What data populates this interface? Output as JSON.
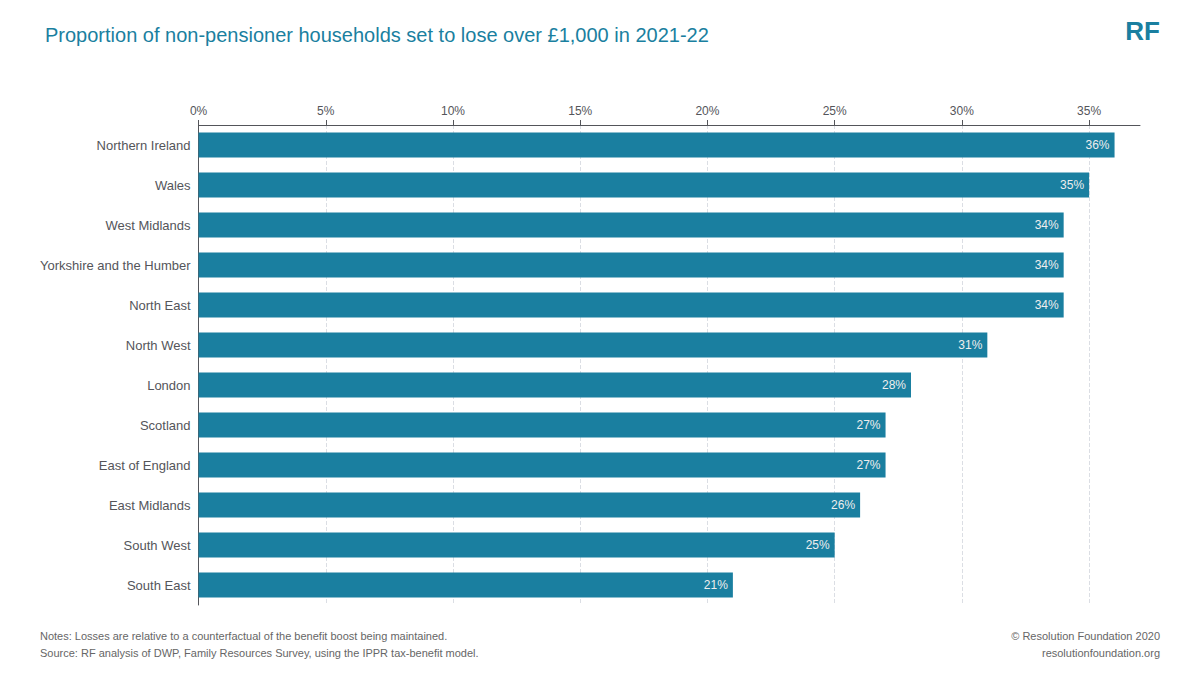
{
  "chart_data": {
    "type": "bar",
    "orientation": "horizontal",
    "title": "Proportion of non-pensioner households set to lose over £1,000 in 2021-22",
    "categories": [
      "Northern Ireland",
      "Wales",
      "West Midlands",
      "Yorkshire and the Humber",
      "North East",
      "North West",
      "London",
      "Scotland",
      "East of England",
      "East Midlands",
      "South West",
      "South East"
    ],
    "values": [
      36,
      35,
      34,
      34,
      34,
      31,
      28,
      27,
      27,
      26,
      25,
      21
    ],
    "value_labels": [
      "36%",
      "35%",
      "34%",
      "34%",
      "34%",
      "31%",
      "28%",
      "27%",
      "27%",
      "26%",
      "25%",
      "21%"
    ],
    "data_labels": true,
    "color": "#1a7fa0",
    "xlim": [
      0,
      37
    ],
    "xticks": [
      {
        "value": 0,
        "label": "0%"
      },
      {
        "value": 5,
        "label": "5%"
      },
      {
        "value": 10,
        "label": "10%"
      },
      {
        "value": 15,
        "label": "15%"
      },
      {
        "value": 20,
        "label": "20%"
      },
      {
        "value": 25,
        "label": "25%"
      },
      {
        "value": 30,
        "label": "30%"
      },
      {
        "value": 35,
        "label": "35%"
      }
    ],
    "grid": true,
    "notes": [
      "Notes: Losses are relative to a counterfactual of the benefit boost being maintained.",
      "Source: RF analysis of DWP, Family Resources Survey, using the IPPR tax-benefit model."
    ],
    "copyright": [
      "© Resolution Foundation 2020",
      "resolutionfoundation.org"
    ],
    "logo_text": "RF"
  }
}
